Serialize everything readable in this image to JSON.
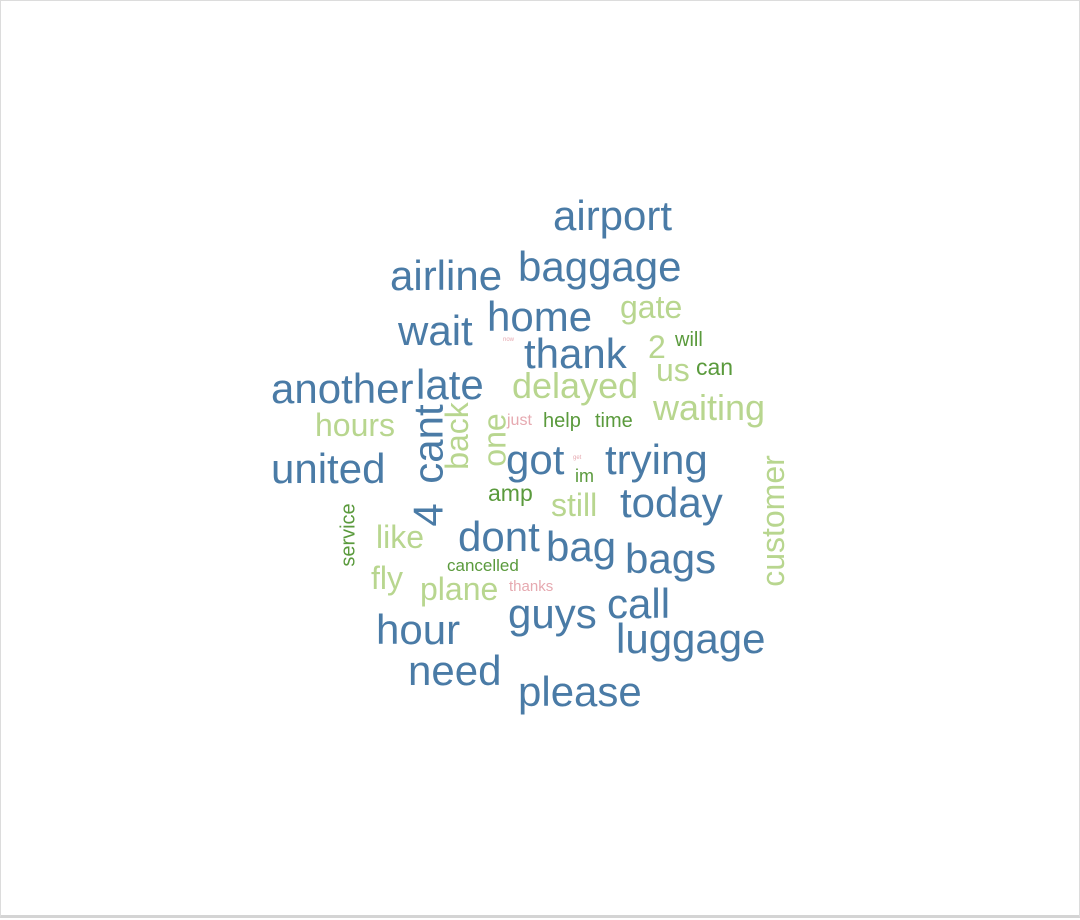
{
  "palette": {
    "dark_blue": "#4a7ba6",
    "light_green": "#b8d68f",
    "dark_green": "#5a9a3c",
    "pink": "#e6a9b0"
  },
  "chart_data": {
    "type": "wordcloud",
    "title": "",
    "words": [
      {
        "text": "airport",
        "tier": 1,
        "color": "dark_blue",
        "rotated": false
      },
      {
        "text": "baggage",
        "tier": 1,
        "color": "dark_blue",
        "rotated": false
      },
      {
        "text": "airline",
        "tier": 1,
        "color": "dark_blue",
        "rotated": false
      },
      {
        "text": "home",
        "tier": 1,
        "color": "dark_blue",
        "rotated": false
      },
      {
        "text": "wait",
        "tier": 1,
        "color": "dark_blue",
        "rotated": false
      },
      {
        "text": "thank",
        "tier": 1,
        "color": "dark_blue",
        "rotated": false
      },
      {
        "text": "another",
        "tier": 1,
        "color": "dark_blue",
        "rotated": false
      },
      {
        "text": "late",
        "tier": 1,
        "color": "dark_blue",
        "rotated": false
      },
      {
        "text": "united",
        "tier": 1,
        "color": "dark_blue",
        "rotated": false
      },
      {
        "text": "4",
        "tier": 1,
        "color": "dark_blue",
        "rotated": true
      },
      {
        "text": "cant",
        "tier": 1,
        "color": "dark_blue",
        "rotated": true
      },
      {
        "text": "got",
        "tier": 1,
        "color": "dark_blue",
        "rotated": false
      },
      {
        "text": "trying",
        "tier": 1,
        "color": "dark_blue",
        "rotated": false
      },
      {
        "text": "today",
        "tier": 1,
        "color": "dark_blue",
        "rotated": false
      },
      {
        "text": "dont",
        "tier": 1,
        "color": "dark_blue",
        "rotated": false
      },
      {
        "text": "bag",
        "tier": 1,
        "color": "dark_blue",
        "rotated": false
      },
      {
        "text": "bags",
        "tier": 1,
        "color": "dark_blue",
        "rotated": false
      },
      {
        "text": "guys",
        "tier": 1,
        "color": "dark_blue",
        "rotated": false
      },
      {
        "text": "call",
        "tier": 1,
        "color": "dark_blue",
        "rotated": false
      },
      {
        "text": "hour",
        "tier": 1,
        "color": "dark_blue",
        "rotated": false
      },
      {
        "text": "luggage",
        "tier": 1,
        "color": "dark_blue",
        "rotated": false
      },
      {
        "text": "need",
        "tier": 1,
        "color": "dark_blue",
        "rotated": false
      },
      {
        "text": "please",
        "tier": 1,
        "color": "dark_blue",
        "rotated": false
      },
      {
        "text": "gate",
        "tier": 2,
        "color": "light_green",
        "rotated": false
      },
      {
        "text": "2",
        "tier": 2,
        "color": "light_green",
        "rotated": false
      },
      {
        "text": "delayed",
        "tier": 2,
        "color": "light_green",
        "rotated": false
      },
      {
        "text": "us",
        "tier": 2,
        "color": "light_green",
        "rotated": false
      },
      {
        "text": "waiting",
        "tier": 2,
        "color": "light_green",
        "rotated": false
      },
      {
        "text": "hours",
        "tier": 2,
        "color": "light_green",
        "rotated": false
      },
      {
        "text": "back",
        "tier": 2,
        "color": "light_green",
        "rotated": true
      },
      {
        "text": "one",
        "tier": 2,
        "color": "light_green",
        "rotated": true
      },
      {
        "text": "still",
        "tier": 2,
        "color": "light_green",
        "rotated": false
      },
      {
        "text": "customer",
        "tier": 2,
        "color": "light_green",
        "rotated": true
      },
      {
        "text": "like",
        "tier": 2,
        "color": "light_green",
        "rotated": false
      },
      {
        "text": "fly",
        "tier": 2,
        "color": "light_green",
        "rotated": false
      },
      {
        "text": "plane",
        "tier": 2,
        "color": "light_green",
        "rotated": false
      },
      {
        "text": "will",
        "tier": 3,
        "color": "dark_green",
        "rotated": false
      },
      {
        "text": "can",
        "tier": 3,
        "color": "dark_green",
        "rotated": false
      },
      {
        "text": "help",
        "tier": 3,
        "color": "dark_green",
        "rotated": false
      },
      {
        "text": "time",
        "tier": 3,
        "color": "dark_green",
        "rotated": false
      },
      {
        "text": "im",
        "tier": 3,
        "color": "dark_green",
        "rotated": false
      },
      {
        "text": "amp",
        "tier": 3,
        "color": "dark_green",
        "rotated": false
      },
      {
        "text": "service",
        "tier": 3,
        "color": "dark_green",
        "rotated": true
      },
      {
        "text": "cancelled",
        "tier": 3,
        "color": "dark_green",
        "rotated": false
      },
      {
        "text": "just",
        "tier": 4,
        "color": "pink",
        "rotated": false
      },
      {
        "text": "thanks",
        "tier": 4,
        "color": "pink",
        "rotated": false
      },
      {
        "text": "now",
        "tier": 5,
        "color": "pink",
        "rotated": false
      },
      {
        "text": "get",
        "tier": 5,
        "color": "pink",
        "rotated": false
      }
    ]
  }
}
